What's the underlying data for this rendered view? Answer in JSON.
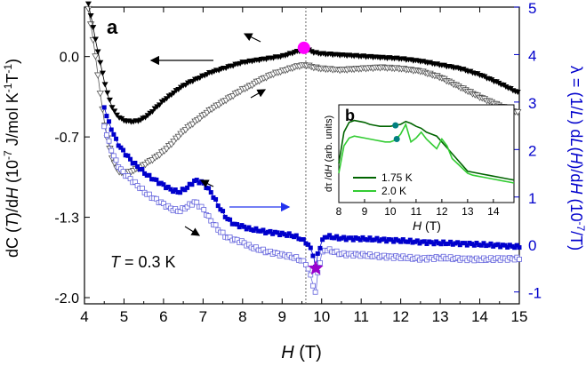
{
  "chart_data": [
    {
      "type": "scatter",
      "panel_label": "a",
      "x_range": [
        4,
        15
      ],
      "y_left_range": [
        -2.0,
        0.4
      ],
      "y_right_range": [
        -1.25,
        5
      ],
      "x_ticks": [
        "4",
        "5",
        "6",
        "7",
        "8",
        "9",
        "10",
        "11",
        "12",
        "13",
        "14",
        "15"
      ],
      "y_left_ticks": [
        "0.0",
        "-0.7",
        "-1.3",
        "-2.0"
      ],
      "y_left_tick_values": [
        0.0,
        -0.65,
        -1.3,
        -1.95
      ],
      "y_right_ticks": [
        "5",
        "4",
        "3",
        "2",
        "1",
        "0",
        "-1"
      ],
      "xlabel_italic": "H",
      "xlabel_rest": " (T)",
      "ylabel_left": {
        "p1": "dC (",
        "italic": "T",
        "p2": ")/d",
        "italic2": "H",
        "p3": " (10",
        "sup": "-7",
        "p4": " J/mol K",
        "sup2": "-1",
        "p5": "T",
        "sup3": "-1",
        "p6": ")"
      },
      "ylabel_right": {
        "p1": "λ = (1/",
        "italic": "L",
        "p2": ") d",
        "italic2": "L",
        "p3": "(",
        "italic3": "H",
        "p4": ")/d",
        "italic4": "H",
        "p5": "  (10",
        "sup": "-7",
        "p6": "/T)"
      },
      "annotation_temp": {
        "italic": "T",
        "text": " = 0.3 K"
      },
      "vline_x": 9.6,
      "vline_x2": 9.85,
      "series": [
        {
          "name": "dC/dH sweep down (filled)",
          "axis": "left",
          "color": "#000000",
          "marker": "filled-triangle-down",
          "x": [
            4.1,
            4.2,
            4.3,
            4.4,
            4.5,
            4.6,
            4.7,
            4.8,
            4.9,
            5.0,
            5.2,
            5.4,
            5.6,
            5.8,
            6.0,
            6.2,
            6.4,
            6.6,
            6.8,
            7.0,
            7.2,
            7.4,
            7.6,
            7.8,
            8.0,
            8.2,
            8.4,
            8.6,
            8.8,
            9.0,
            9.2,
            9.4,
            9.6,
            9.8,
            10.0,
            10.5,
            11.0,
            11.5,
            12.0,
            12.5,
            13.0,
            13.5,
            14.0,
            14.5,
            15.0
          ],
          "y": [
            0.42,
            0.27,
            0.1,
            -0.05,
            -0.2,
            -0.32,
            -0.41,
            -0.47,
            -0.5,
            -0.52,
            -0.53,
            -0.52,
            -0.48,
            -0.42,
            -0.36,
            -0.31,
            -0.26,
            -0.22,
            -0.19,
            -0.16,
            -0.13,
            -0.11,
            -0.09,
            -0.07,
            -0.05,
            -0.04,
            -0.03,
            -0.02,
            -0.01,
            0.0,
            0.02,
            0.04,
            0.06,
            0.03,
            0.02,
            0.01,
            0.0,
            -0.01,
            -0.02,
            -0.04,
            -0.07,
            -0.1,
            -0.15,
            -0.22,
            -0.3
          ]
        },
        {
          "name": "dC/dH sweep up (open)",
          "axis": "left",
          "color": "#555555",
          "marker": "open-triangle-down",
          "x": [
            4.1,
            4.2,
            4.3,
            4.4,
            4.5,
            4.6,
            4.7,
            4.8,
            4.9,
            5.0,
            5.2,
            5.4,
            5.6,
            5.8,
            6.0,
            6.2,
            6.4,
            6.6,
            6.8,
            7.0,
            7.2,
            7.4,
            7.6,
            7.8,
            8.0,
            8.2,
            8.4,
            8.6,
            8.8,
            9.0,
            9.2,
            9.4,
            9.6,
            9.8,
            10.0,
            10.5,
            11.0,
            11.5,
            12.0,
            12.5,
            13.0,
            13.5,
            14.0,
            14.5,
            15.0
          ],
          "y": [
            0.38,
            0.18,
            -0.05,
            -0.3,
            -0.52,
            -0.7,
            -0.82,
            -0.9,
            -0.94,
            -0.95,
            -0.93,
            -0.9,
            -0.86,
            -0.82,
            -0.77,
            -0.71,
            -0.64,
            -0.58,
            -0.53,
            -0.48,
            -0.43,
            -0.39,
            -0.35,
            -0.31,
            -0.27,
            -0.24,
            -0.2,
            -0.17,
            -0.14,
            -0.12,
            -0.1,
            -0.08,
            -0.07,
            -0.09,
            -0.1,
            -0.11,
            -0.1,
            -0.09,
            -0.1,
            -0.12,
            -0.17,
            -0.25,
            -0.33,
            -0.4,
            -0.46
          ]
        },
        {
          "name": "λ sweep up (filled blue)",
          "axis": "right",
          "color": "#0000cc",
          "marker": "filled-square",
          "x": [
            4.5,
            4.6,
            4.7,
            4.8,
            4.9,
            5.0,
            5.2,
            5.4,
            5.6,
            5.8,
            6.0,
            6.2,
            6.4,
            6.6,
            6.8,
            7.0,
            7.2,
            7.4,
            7.6,
            7.8,
            8.0,
            8.2,
            8.4,
            8.6,
            8.8,
            9.0,
            9.2,
            9.4,
            9.6,
            9.7,
            9.8,
            9.85,
            9.9,
            10.0,
            10.1,
            10.3,
            10.5,
            11.0,
            11.5,
            12.0,
            12.5,
            13.0,
            13.5,
            14.0,
            14.5,
            15.0
          ],
          "y": [
            2.9,
            2.6,
            2.4,
            2.2,
            2.05,
            1.95,
            1.75,
            1.6,
            1.45,
            1.35,
            1.25,
            1.15,
            1.1,
            1.2,
            1.35,
            1.3,
            1.1,
            0.8,
            0.55,
            0.42,
            0.38,
            0.32,
            0.3,
            0.26,
            0.25,
            0.22,
            0.2,
            0.15,
            0.05,
            -0.05,
            -0.25,
            -0.55,
            -0.2,
            0.05,
            0.18,
            0.15,
            0.13,
            0.12,
            0.1,
            0.08,
            0.05,
            0.03,
            0.02,
            0.0,
            -0.02,
            -0.05
          ]
        },
        {
          "name": "λ sweep down (open blue)",
          "axis": "right",
          "color": "#6666dd",
          "marker": "open-square",
          "x": [
            4.5,
            4.6,
            4.7,
            4.8,
            4.9,
            5.0,
            5.2,
            5.4,
            5.6,
            5.8,
            6.0,
            6.2,
            6.4,
            6.6,
            6.8,
            7.0,
            7.2,
            7.4,
            7.6,
            7.8,
            8.0,
            8.2,
            8.4,
            8.6,
            8.8,
            9.0,
            9.2,
            9.4,
            9.6,
            9.7,
            9.8,
            9.85,
            9.9,
            10.0,
            10.1,
            10.3,
            10.5,
            11.0,
            11.5,
            12.0,
            12.5,
            13.0,
            13.5,
            14.0,
            14.5,
            15.0
          ],
          "y": [
            2.5,
            2.2,
            1.95,
            1.75,
            1.6,
            1.5,
            1.35,
            1.2,
            1.05,
            0.95,
            0.85,
            0.75,
            0.7,
            0.8,
            0.9,
            0.75,
            0.5,
            0.3,
            0.15,
            0.1,
            0.05,
            -0.05,
            -0.1,
            -0.15,
            -0.18,
            -0.22,
            -0.25,
            -0.3,
            -0.4,
            -0.6,
            -0.9,
            -1.05,
            -0.6,
            -0.2,
            -0.1,
            -0.15,
            -0.2,
            -0.22,
            -0.25,
            -0.27,
            -0.3,
            -0.28,
            -0.3,
            -0.32,
            -0.3,
            -0.3
          ]
        }
      ],
      "markers": [
        {
          "name": "magenta-circle",
          "x": 9.55,
          "y_left": 0.07,
          "color": "#ff00ff"
        },
        {
          "name": "purple-star",
          "x": 9.85,
          "y_right": -0.5,
          "color": "#9900cc"
        }
      ]
    },
    {
      "type": "line",
      "panel_label": "b",
      "x_range": [
        8,
        14.8
      ],
      "x_ticks": [
        "8",
        "9",
        "10",
        "11",
        "12",
        "13",
        "14"
      ],
      "xlabel_italic": "H",
      "xlabel_rest": " (T)",
      "ylabel": {
        "p1": "dτ /d",
        "italic": "H",
        "p2": " (arb. units)"
      },
      "series": [
        {
          "name": "1.75 K",
          "color": "#006400",
          "x": [
            8.0,
            8.2,
            8.4,
            8.6,
            8.8,
            9.0,
            9.2,
            9.4,
            9.6,
            9.8,
            10.0,
            10.2,
            10.4,
            10.6,
            10.8,
            11.0,
            11.2,
            11.4,
            11.6,
            11.8,
            12.0,
            12.2,
            12.4,
            12.6,
            12.8,
            13.0,
            13.2,
            13.4,
            13.6,
            13.8,
            14.0,
            14.2,
            14.4,
            14.6,
            14.8
          ],
          "y": [
            0.4,
            0.72,
            0.82,
            0.84,
            0.83,
            0.82,
            0.8,
            0.79,
            0.78,
            0.78,
            0.78,
            0.79,
            0.8,
            0.83,
            0.81,
            0.78,
            0.76,
            0.72,
            0.7,
            0.68,
            0.62,
            0.56,
            0.5,
            0.44,
            0.38,
            0.32,
            0.31,
            0.3,
            0.29,
            0.28,
            0.27,
            0.26,
            0.25,
            0.24,
            0.23
          ]
        },
        {
          "name": "2.0 K",
          "color": "#33cc33",
          "x": [
            8.0,
            8.2,
            8.4,
            8.6,
            8.8,
            9.0,
            9.2,
            9.4,
            9.6,
            9.8,
            10.0,
            10.2,
            10.4,
            10.6,
            10.8,
            11.0,
            11.2,
            11.4,
            11.6,
            11.8,
            12.0,
            12.2,
            12.4,
            12.6,
            12.8,
            13.0,
            13.2,
            13.4,
            13.6,
            13.8,
            14.0,
            14.2,
            14.4,
            14.6,
            14.8
          ],
          "y": [
            0.3,
            0.58,
            0.66,
            0.68,
            0.67,
            0.66,
            0.65,
            0.64,
            0.63,
            0.62,
            0.62,
            0.64,
            0.7,
            0.8,
            0.62,
            0.66,
            0.72,
            0.65,
            0.6,
            0.55,
            0.65,
            0.58,
            0.45,
            0.4,
            0.35,
            0.3,
            0.28,
            0.27,
            0.26,
            0.25,
            0.24,
            0.23,
            0.22,
            0.21,
            0.2
          ]
        }
      ],
      "markers": [
        {
          "name": "teal-dot-1",
          "x": 10.2,
          "y": 0.79,
          "color": "#008080"
        },
        {
          "name": "teal-dot-2",
          "x": 10.25,
          "y": 0.65,
          "color": "#008080"
        }
      ]
    }
  ]
}
